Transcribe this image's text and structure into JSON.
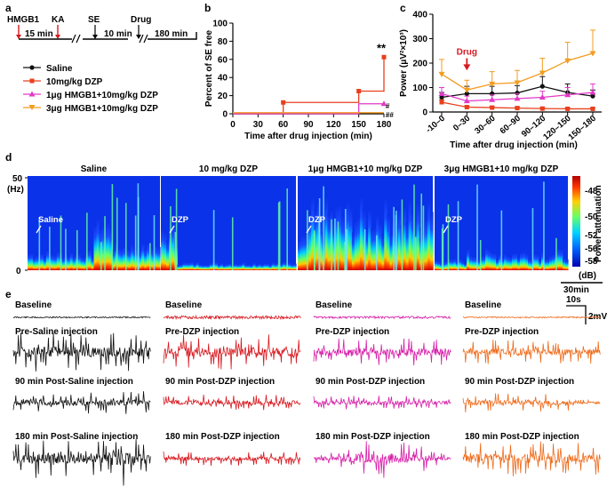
{
  "panels": {
    "a": "a",
    "b": "b",
    "c": "c",
    "d": "d",
    "e": "e"
  },
  "timeline": {
    "events": [
      "HMGB1",
      "KA",
      "SE",
      "Drug"
    ],
    "intervals": [
      "15 min",
      "10 min",
      "180 min"
    ]
  },
  "legend": [
    {
      "label": "Saline",
      "color": "#111111",
      "marker": "circle"
    },
    {
      "label": "10mg/kg DZP",
      "color": "#e8401c",
      "marker": "square"
    },
    {
      "label": "1μg HMGB1+10mg/kg DZP",
      "color": "#e339c9",
      "marker": "triangle-up"
    },
    {
      "label": "3μg HMGB1+10mg/kg DZP",
      "color": "#f39c1f",
      "marker": "triangle-down"
    }
  ],
  "chart_data": [
    {
      "id": "b",
      "type": "line",
      "ylabel": "Percent of SE free",
      "xlabel": "Time after drug injection (min)",
      "xlim": [
        0,
        180
      ],
      "ylim": [
        0,
        100
      ],
      "xticks": [
        "0",
        "30",
        "60",
        "90",
        "120",
        "150",
        "180"
      ],
      "yticks": [
        "0",
        "20",
        "40",
        "60",
        "80",
        "100"
      ],
      "series": [
        {
          "name": "Saline",
          "color": "#111111",
          "points": [
            [
              0,
              0
            ],
            [
              180,
              0
            ]
          ]
        },
        {
          "name": "10mg/kg DZP",
          "color": "#e8401c",
          "points": [
            [
              0,
              0
            ],
            [
              60,
              0
            ],
            [
              60,
              12.5
            ],
            [
              150,
              12.5
            ],
            [
              150,
              25
            ],
            [
              180,
              25
            ],
            [
              180,
              62.5
            ]
          ]
        },
        {
          "name": "1μg HMGB1+10mg/kg DZP",
          "color": "#e339c9",
          "points": [
            [
              0,
              0
            ],
            [
              150,
              0
            ],
            [
              150,
              11
            ],
            [
              180,
              11
            ]
          ]
        },
        {
          "name": "3μg HMGB1+10mg/kg DZP",
          "color": "#f39c1f",
          "points": [
            [
              0,
              0
            ],
            [
              180,
              0
            ]
          ]
        }
      ],
      "annotations": [
        {
          "text": "**",
          "x": 180,
          "y": 68
        },
        {
          "text": "#",
          "x": 182,
          "y": 10
        },
        {
          "text": "##",
          "x": 182,
          "y": 0
        }
      ]
    },
    {
      "id": "c",
      "type": "line",
      "ylabel": "Power (μV²×10³)",
      "xlabel": "Time after drug injection (min)",
      "ylim": [
        0,
        400
      ],
      "yticks": [
        "0",
        "100",
        "200",
        "300",
        "400"
      ],
      "categories": [
        "-10–0",
        "0–30",
        "30–60",
        "60–90",
        "90–120",
        "120–150",
        "150–180"
      ],
      "annotation": {
        "text": "Drug",
        "category": 1
      },
      "series": [
        {
          "name": "Saline",
          "color": "#111111",
          "values": [
            60,
            75,
            75,
            78,
            105,
            80,
            65
          ],
          "errors": [
            20,
            30,
            30,
            30,
            40,
            35,
            25
          ]
        },
        {
          "name": "10mg/kg DZP",
          "color": "#e8401c",
          "values": [
            40,
            20,
            18,
            16,
            14,
            13,
            13
          ],
          "errors": [
            10,
            5,
            5,
            5,
            4,
            4,
            4
          ]
        },
        {
          "name": "1μg HMGB1+10mg/kg DZP",
          "color": "#e339c9",
          "values": [
            75,
            45,
            50,
            55,
            60,
            70,
            80
          ],
          "errors": [
            25,
            20,
            20,
            20,
            25,
            30,
            35
          ]
        },
        {
          "name": "3μg HMGB1+10mg/kg DZP",
          "color": "#f39c1f",
          "values": [
            155,
            90,
            115,
            120,
            160,
            210,
            240
          ],
          "errors": [
            60,
            40,
            50,
            50,
            60,
            75,
            95
          ]
        }
      ]
    }
  ],
  "spectrograms": {
    "yaxis": {
      "top": "50",
      "unit": "(Hz)",
      "bottom": "0"
    },
    "panels": [
      {
        "title": "Saline",
        "marker": "Saline"
      },
      {
        "title": "10 mg/kg DZP",
        "marker": "DZP"
      },
      {
        "title": "1μg HMGB1+10 mg/kg DZP",
        "marker": "DZP"
      },
      {
        "title": "3μg HMGB1+10 mg/kg DZP",
        "marker": "DZP"
      }
    ],
    "colorbar": {
      "ticks": [
        "-48",
        "-50",
        "-52",
        "-56",
        "-58"
      ],
      "label": "Power attenuation",
      "unit": "(dB)"
    },
    "scalebar": "30min"
  },
  "eeg": {
    "scale": {
      "time": "10s",
      "amplitude": "2mV"
    },
    "columns": [
      {
        "color": "#111111",
        "rows": [
          "Baseline",
          "Pre-Saline injection",
          "90 min Post-Saline injection",
          "180 min Post-Saline injection"
        ]
      },
      {
        "color": "#d71920",
        "rows": [
          "Baseline",
          "Pre-DZP injection",
          "90 min Post-DZP injection",
          "180 min Post-DZP injection"
        ]
      },
      {
        "color": "#d61fa8",
        "rows": [
          "Baseline",
          "Pre-DZP injection",
          "90 min Post-DZP injection",
          "180 min Post-DZP injection"
        ]
      },
      {
        "color": "#ef6a1a",
        "rows": [
          "Baseline",
          "Pre-DZP injection",
          "90 min Post-DZP injection",
          "180 min Post-DZP injection"
        ]
      }
    ]
  }
}
